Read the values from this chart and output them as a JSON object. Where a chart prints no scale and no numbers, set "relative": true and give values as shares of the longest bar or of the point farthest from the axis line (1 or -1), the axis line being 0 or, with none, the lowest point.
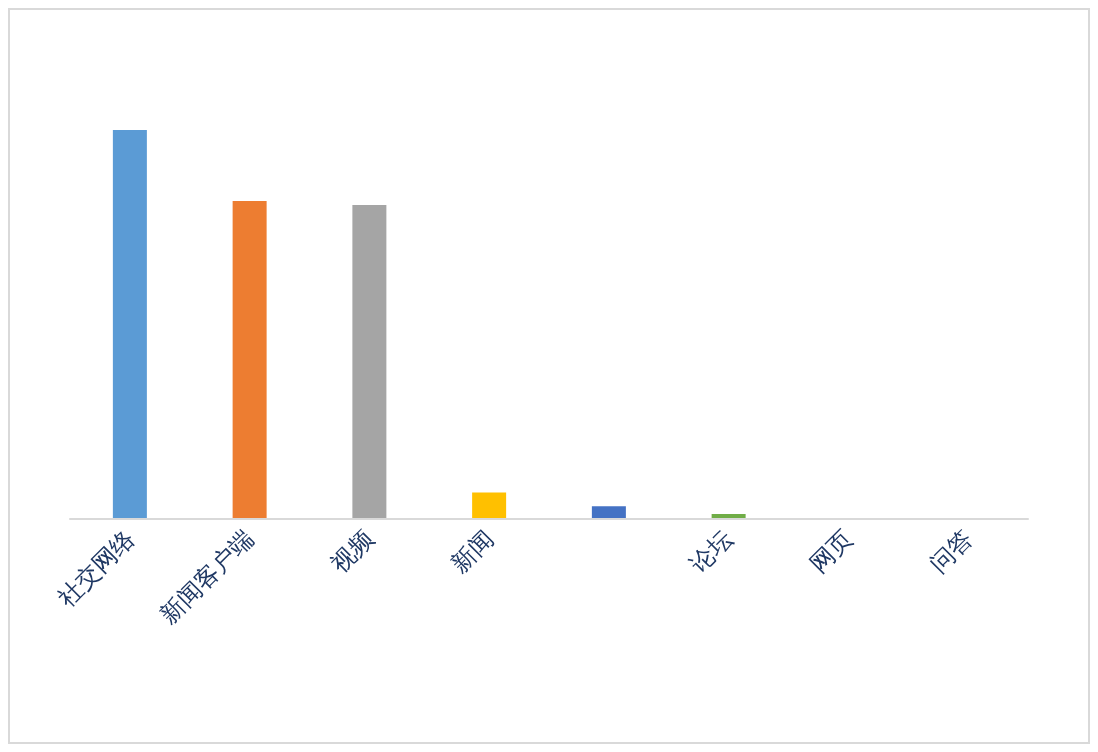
{
  "chart_data": {
    "type": "bar",
    "relative": true,
    "categories": [
      "社交网络",
      "新闻客户端",
      "视频",
      "新闻",
      null,
      "论坛",
      "网页",
      "问答"
    ],
    "values": [
      1,
      0.817,
      0.807,
      0.066,
      0.03,
      0.01,
      0,
      0
    ],
    "colors": [
      "#5b9bd5",
      "#ed7d31",
      "#a5a5a5",
      "#ffc000",
      "#4472c4",
      "#70ad47",
      "#255e91",
      "#9e480e"
    ],
    "orientation": "vertical"
  }
}
